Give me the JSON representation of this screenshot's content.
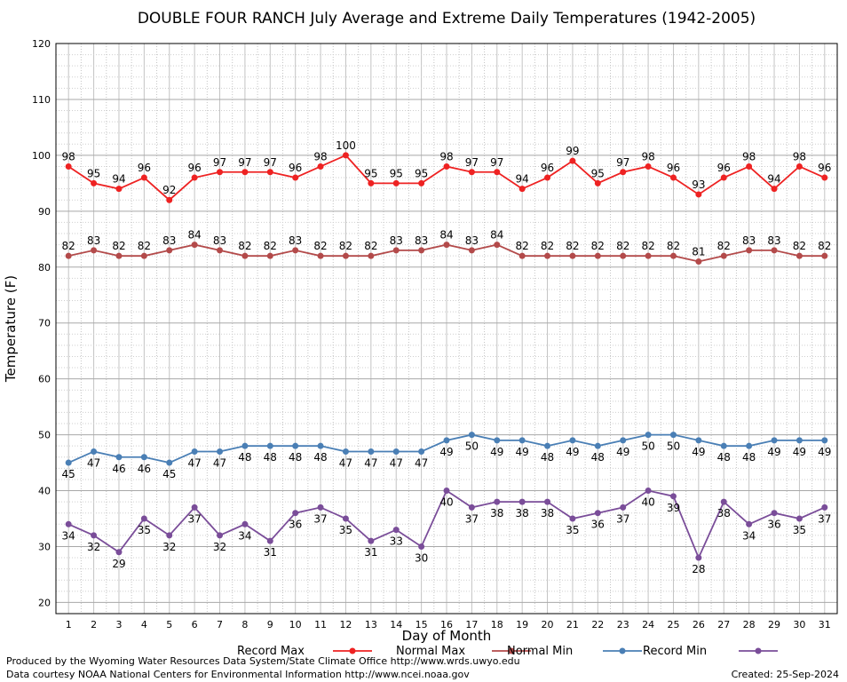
{
  "chart_data": {
    "type": "line",
    "title": "DOUBLE FOUR RANCH July Average and Extreme Daily Temperatures (1942-2005)",
    "xlabel": "Day of Month",
    "ylabel": "Temperature (F)",
    "xlim": [
      1,
      31
    ],
    "ylim": [
      18,
      120
    ],
    "yticks": [
      20,
      30,
      40,
      50,
      60,
      70,
      80,
      90,
      100,
      110,
      120
    ],
    "x": [
      1,
      2,
      3,
      4,
      5,
      6,
      7,
      8,
      9,
      10,
      11,
      12,
      13,
      14,
      15,
      16,
      17,
      18,
      19,
      20,
      21,
      22,
      23,
      24,
      25,
      26,
      27,
      28,
      29,
      30,
      31
    ],
    "grid": true,
    "legend_position": "bottom",
    "series": [
      {
        "name": "Record Max",
        "color": "#ee2222",
        "label_position": "above",
        "values": [
          98,
          95,
          94,
          96,
          92,
          96,
          97,
          97,
          97,
          96,
          98,
          100,
          95,
          95,
          95,
          98,
          97,
          97,
          94,
          96,
          99,
          95,
          97,
          98,
          96,
          93,
          96,
          98,
          94,
          98,
          96
        ]
      },
      {
        "name": "Normal Max",
        "color": "#b34a4a",
        "label_position": "above",
        "values": [
          82,
          83,
          82,
          82,
          83,
          84,
          83,
          82,
          82,
          83,
          82,
          82,
          82,
          83,
          83,
          84,
          83,
          84,
          82,
          82,
          82,
          82,
          82,
          82,
          82,
          81,
          82,
          83,
          83,
          82,
          82
        ]
      },
      {
        "name": "Normal Min",
        "color": "#4a7fb5",
        "label_position": "below",
        "values": [
          45,
          47,
          46,
          46,
          45,
          47,
          47,
          48,
          48,
          48,
          48,
          47,
          47,
          47,
          47,
          49,
          50,
          49,
          49,
          48,
          49,
          48,
          49,
          50,
          50,
          49,
          48,
          48,
          49,
          49,
          49
        ]
      },
      {
        "name": "Record Min",
        "color": "#7a4d99",
        "label_position": "below",
        "values": [
          34,
          32,
          29,
          35,
          32,
          37,
          32,
          34,
          31,
          36,
          37,
          35,
          31,
          33,
          30,
          40,
          37,
          38,
          38,
          38,
          35,
          36,
          37,
          40,
          39,
          28,
          38,
          34,
          36,
          35,
          37
        ]
      }
    ]
  },
  "footer": {
    "produced_by": "Produced by the Wyoming Water Resources Data System/State Climate Office http://www.wrds.uwyo.edu",
    "data_courtesy": "Data courtesy NOAA National Centers for Environmental Information http://www.ncei.noaa.gov",
    "created": "Created: 25-Sep-2024"
  }
}
